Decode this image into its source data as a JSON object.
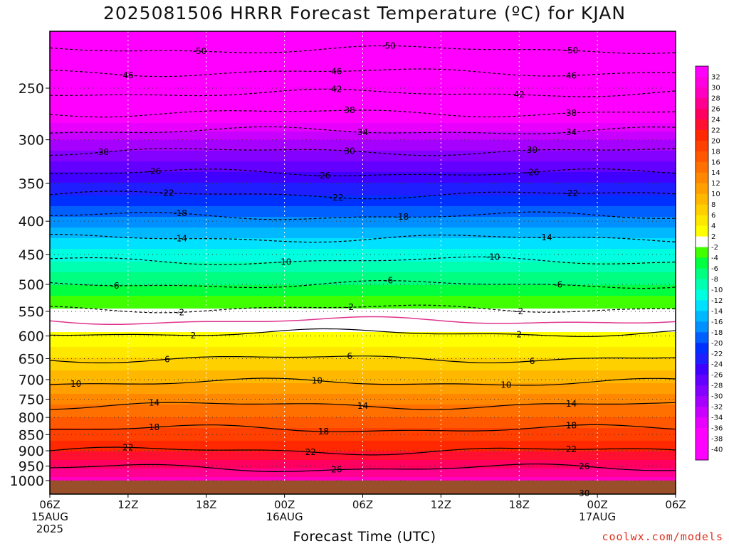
{
  "title": "2025081506 HRRR Forecast Temperature (ºC) for KJAN",
  "credit": "coolwx.com/models",
  "colors": {
    "ground": "#9a4f2b",
    "freezing_line": "#e0338f",
    "scale": [
      "#ff00ff",
      "#e800ff",
      "#c800ff",
      "#a600ff",
      "#8400ff",
      "#6400ff",
      "#4000ff",
      "#1e1eff",
      "#0030ff",
      "#0060ff",
      "#0090ff",
      "#00b8ff",
      "#00e0ff",
      "#00ffe0",
      "#00ffb0",
      "#00ff80",
      "#00ff40",
      "#40ff00",
      "#ffffff",
      "#ffff00",
      "#ffe800",
      "#ffd000",
      "#ffb800",
      "#ffa000",
      "#ff8800",
      "#ff7000",
      "#ff5800",
      "#ff4000",
      "#ff2800",
      "#ff1030",
      "#ff0060",
      "#ff0090",
      "#ff00c0",
      "#ff00ff"
    ]
  },
  "chart_data": {
    "type": "heatmap",
    "title": "2025081506 HRRR Forecast Temperature (ºC) for KJAN",
    "xlabel": "Forecast Time (UTC)",
    "ylabel": "",
    "x_ticks": [
      {
        "hour": 0,
        "l1": "06Z",
        "l2": "15AUG",
        "l3": "2025"
      },
      {
        "hour": 6,
        "l1": "12Z",
        "l2": "",
        "l3": ""
      },
      {
        "hour": 12,
        "l1": "18Z",
        "l2": "",
        "l3": ""
      },
      {
        "hour": 18,
        "l1": "00Z",
        "l2": "16AUG",
        "l3": ""
      },
      {
        "hour": 24,
        "l1": "06Z",
        "l2": "",
        "l3": ""
      },
      {
        "hour": 30,
        "l1": "12Z",
        "l2": "",
        "l3": ""
      },
      {
        "hour": 36,
        "l1": "18Z",
        "l2": "",
        "l3": ""
      },
      {
        "hour": 42,
        "l1": "00Z",
        "l2": "17AUG",
        "l3": ""
      },
      {
        "hour": 48,
        "l1": "06Z",
        "l2": "",
        "l3": ""
      }
    ],
    "y_ticks": [
      250,
      300,
      350,
      400,
      450,
      500,
      550,
      600,
      650,
      700,
      750,
      800,
      850,
      900,
      950,
      1000
    ],
    "xlim": [
      0,
      48
    ],
    "ylim_hpa": [
      200,
      1000
    ],
    "y_scale": "log-pressure",
    "colorbar_labels": [
      "32",
      "30",
      "28",
      "26",
      "24",
      "22",
      "20",
      "18",
      "16",
      "14",
      "12",
      "10",
      "8",
      "6",
      "4",
      "2",
      "-2",
      "-4",
      "-6",
      "-8",
      "-10",
      "-12",
      "-14",
      "-16",
      "-18",
      "-20",
      "-22",
      "-24",
      "-26",
      "-28",
      "-30",
      "-32",
      "-34",
      "-36",
      "-38",
      "-40"
    ],
    "profile": [
      {
        "p": 200,
        "t": -54
      },
      {
        "p": 250,
        "t": -43
      },
      {
        "p": 300,
        "t": -32
      },
      {
        "p": 350,
        "t": -24
      },
      {
        "p": 400,
        "t": -17
      },
      {
        "p": 450,
        "t": -11
      },
      {
        "p": 500,
        "t": -6
      },
      {
        "p": 550,
        "t": -1.5
      },
      {
        "p": 600,
        "t": 2.5
      },
      {
        "p": 650,
        "t": 6
      },
      {
        "p": 700,
        "t": 9.5
      },
      {
        "p": 750,
        "t": 13
      },
      {
        "p": 800,
        "t": 16
      },
      {
        "p": 850,
        "t": 19
      },
      {
        "p": 900,
        "t": 22
      },
      {
        "p": 950,
        "t": 25.5
      },
      {
        "p": 1000,
        "t": 29
      }
    ],
    "contours": [
      {
        "level": -50,
        "labels": [
          {
            "hour": 11.5,
            "text": "-50"
          },
          {
            "hour": 26,
            "text": "-50"
          },
          {
            "hour": 40,
            "text": "-50"
          }
        ]
      },
      {
        "level": -46,
        "labels": [
          {
            "hour": 6,
            "text": "46"
          },
          {
            "hour": 22,
            "text": "46"
          },
          {
            "hour": 40,
            "text": "46"
          }
        ]
      },
      {
        "level": -42,
        "labels": [
          {
            "hour": 22,
            "text": "42"
          },
          {
            "hour": 36,
            "text": "42"
          }
        ]
      },
      {
        "level": -38,
        "labels": [
          {
            "hour": 23,
            "text": "38"
          },
          {
            "hour": 40,
            "text": "38"
          }
        ]
      },
      {
        "level": -34,
        "labels": [
          {
            "hour": 24,
            "text": "34"
          },
          {
            "hour": 40,
            "text": "34"
          }
        ]
      },
      {
        "level": -30,
        "labels": [
          {
            "hour": 4,
            "text": "-30"
          },
          {
            "hour": 23,
            "text": "30"
          },
          {
            "hour": 37,
            "text": "30"
          }
        ]
      },
      {
        "level": -26,
        "labels": [
          {
            "hour": 8,
            "text": "-26"
          },
          {
            "hour": 21,
            "text": "-26"
          },
          {
            "hour": 37,
            "text": "-26"
          }
        ]
      },
      {
        "level": -22,
        "labels": [
          {
            "hour": 9,
            "text": "-22"
          },
          {
            "hour": 22,
            "text": "-22"
          },
          {
            "hour": 40,
            "text": "-22"
          }
        ]
      },
      {
        "level": -18,
        "labels": [
          {
            "hour": 10,
            "text": "-18"
          },
          {
            "hour": 27,
            "text": "-18"
          }
        ]
      },
      {
        "level": -14,
        "labels": [
          {
            "hour": 10,
            "text": "-14"
          },
          {
            "hour": 38,
            "text": "-14"
          }
        ]
      },
      {
        "level": -10,
        "labels": [
          {
            "hour": 18,
            "text": "-10"
          },
          {
            "hour": 34,
            "text": "-10"
          }
        ]
      },
      {
        "level": -6,
        "labels": [
          {
            "hour": 5,
            "text": "-6"
          },
          {
            "hour": 26,
            "text": "-6"
          },
          {
            "hour": 39,
            "text": "-6"
          }
        ]
      },
      {
        "level": -2,
        "labels": [
          {
            "hour": 10,
            "text": "-2"
          },
          {
            "hour": 23,
            "text": "-2"
          },
          {
            "hour": 36,
            "text": "-2"
          }
        ]
      },
      {
        "level": 0,
        "freezing": true,
        "labels": []
      },
      {
        "level": 2,
        "labels": [
          {
            "hour": 11,
            "text": "2"
          },
          {
            "hour": 36,
            "text": "2"
          }
        ]
      },
      {
        "level": 6,
        "labels": [
          {
            "hour": 9,
            "text": "6"
          },
          {
            "hour": 23,
            "text": "6"
          },
          {
            "hour": 37,
            "text": "6"
          }
        ]
      },
      {
        "level": 10,
        "labels": [
          {
            "hour": 2,
            "text": "10"
          },
          {
            "hour": 20.5,
            "text": "10"
          },
          {
            "hour": 35,
            "text": "10"
          }
        ]
      },
      {
        "level": 14,
        "labels": [
          {
            "hour": 8,
            "text": "14"
          },
          {
            "hour": 24,
            "text": "14"
          },
          {
            "hour": 40,
            "text": "14"
          }
        ]
      },
      {
        "level": 18,
        "labels": [
          {
            "hour": 8,
            "text": "18"
          },
          {
            "hour": 21,
            "text": "18"
          },
          {
            "hour": 40,
            "text": "18"
          }
        ]
      },
      {
        "level": 22,
        "labels": [
          {
            "hour": 6,
            "text": "22"
          },
          {
            "hour": 20,
            "text": "22"
          },
          {
            "hour": 40,
            "text": "22"
          }
        ]
      },
      {
        "level": 26,
        "labels": [
          {
            "hour": 22,
            "text": "26"
          },
          {
            "hour": 41,
            "text": "26"
          }
        ]
      },
      {
        "level": 30,
        "labels": [
          {
            "hour": 41,
            "text": "30"
          }
        ]
      }
    ]
  }
}
